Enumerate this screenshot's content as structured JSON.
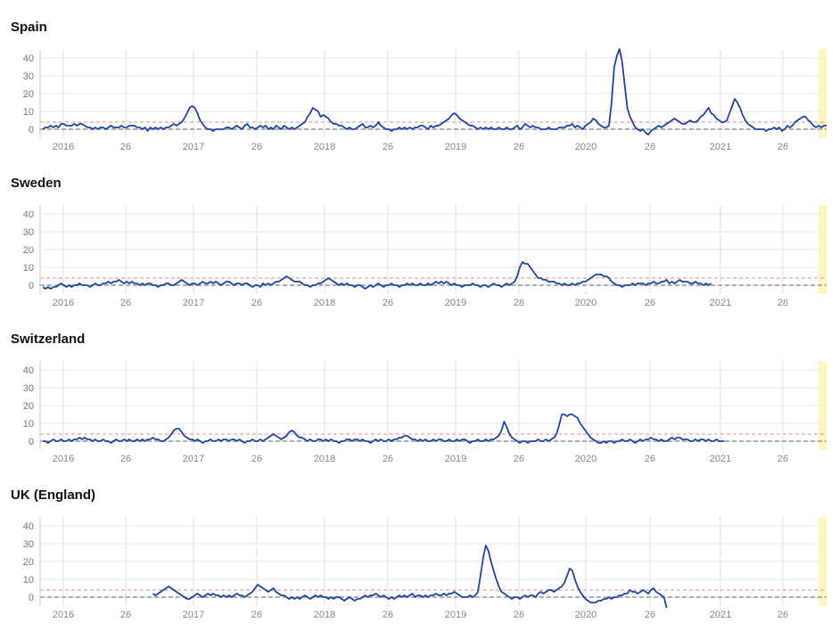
{
  "chart_data": [
    {
      "type": "line",
      "title": "Spain",
      "ylim": [
        -5,
        45
      ],
      "yticks": [
        0,
        10,
        20,
        30,
        40
      ],
      "x_tick_labels": [
        "2016",
        "26",
        "2017",
        "26",
        "2018",
        "26",
        "2019",
        "26",
        "2020",
        "26",
        "2021",
        "26"
      ],
      "baseline": 0,
      "threshold": 4,
      "series": [
        {
          "values": [
            0,
            1,
            1,
            2,
            1,
            2,
            1,
            3,
            3,
            2,
            2,
            2,
            3,
            2,
            3,
            3,
            2,
            1,
            1,
            0,
            1,
            0,
            1,
            1,
            0,
            1,
            2,
            1,
            1,
            1,
            2,
            1,
            1,
            2,
            2,
            2,
            1,
            1,
            0,
            1,
            -1,
            1,
            0,
            1,
            0,
            1,
            0,
            1,
            1,
            2,
            3,
            2,
            3,
            4,
            6,
            9,
            12,
            13,
            12,
            9,
            5,
            3,
            1,
            0,
            0,
            -1,
            0,
            0,
            0,
            0,
            1,
            1,
            0,
            1,
            2,
            1,
            0,
            2,
            3,
            1,
            1,
            0,
            1,
            2,
            1,
            2,
            0,
            1,
            0,
            2,
            1,
            0,
            2,
            1,
            0,
            1,
            0,
            1,
            2,
            3,
            4,
            7,
            9,
            12,
            11,
            10,
            7,
            8,
            7,
            6,
            4,
            3,
            3,
            2,
            2,
            1,
            0,
            1,
            0,
            0,
            1,
            2,
            3,
            1,
            1,
            2,
            1,
            2,
            4,
            2,
            1,
            0,
            0,
            -1,
            0,
            0,
            1,
            0,
            1,
            0,
            1,
            0,
            1,
            1,
            2,
            2,
            1,
            0,
            2,
            1,
            2,
            2,
            3,
            4,
            5,
            6,
            8,
            9,
            8,
            6,
            5,
            4,
            3,
            2,
            2,
            1,
            0,
            1,
            0,
            1,
            0,
            1,
            0,
            0,
            1,
            0,
            0,
            1,
            0,
            0,
            1,
            2,
            0,
            1,
            3,
            2,
            1,
            2,
            1,
            1,
            0,
            0,
            0,
            1,
            0,
            0,
            0,
            1,
            1,
            1,
            2,
            2,
            3,
            1,
            2,
            1,
            0,
            2,
            3,
            4,
            6,
            5,
            3,
            2,
            1,
            1,
            2,
            15,
            35,
            41,
            45,
            38,
            25,
            12,
            7,
            4,
            1,
            0,
            -1,
            0,
            -2,
            -3,
            -1,
            0,
            1,
            2,
            1,
            2,
            3,
            4,
            5,
            6,
            5,
            4,
            3,
            3,
            4,
            5,
            4,
            4,
            5,
            7,
            8,
            10,
            12,
            9,
            8,
            6,
            5,
            4,
            4,
            5,
            9,
            13,
            17,
            15,
            12,
            8,
            5,
            3,
            2,
            1,
            0,
            0,
            0,
            0,
            -1,
            0,
            0,
            1,
            0,
            1,
            -1,
            0,
            2,
            1,
            2,
            4,
            5,
            6,
            7,
            7,
            5,
            4,
            2,
            1,
            2,
            1,
            2,
            2
          ]
        }
      ]
    },
    {
      "type": "line",
      "title": "Sweden",
      "ylim": [
        -5,
        45
      ],
      "yticks": [
        0,
        10,
        20,
        30,
        40
      ],
      "x_tick_labels": [
        "2016",
        "26",
        "2017",
        "26",
        "2018",
        "26",
        "2019",
        "26",
        "2020",
        "26",
        "2021",
        "26"
      ],
      "baseline": 0,
      "threshold": 4,
      "series": [
        {
          "values": [
            -1,
            -2,
            -1,
            -2,
            -1,
            -1,
            0,
            1,
            0,
            -1,
            0,
            -1,
            0,
            0,
            1,
            0,
            0,
            0,
            -1,
            0,
            1,
            0,
            0,
            1,
            1,
            2,
            1,
            2,
            2,
            3,
            2,
            1,
            2,
            1,
            2,
            1,
            1,
            0,
            1,
            0,
            1,
            1,
            0,
            0,
            -1,
            0,
            0,
            1,
            1,
            0,
            0,
            1,
            2,
            3,
            2,
            1,
            0,
            1,
            1,
            0,
            1,
            2,
            1,
            1,
            2,
            1,
            2,
            1,
            0,
            1,
            2,
            2,
            1,
            0,
            1,
            1,
            0,
            1,
            1,
            0,
            -1,
            0,
            0,
            -1,
            1,
            0,
            1,
            0,
            1,
            2,
            2,
            3,
            4,
            5,
            4,
            3,
            2,
            2,
            2,
            1,
            0,
            0,
            -1,
            0,
            0,
            1,
            1,
            2,
            3,
            4,
            3,
            2,
            1,
            0,
            1,
            0,
            1,
            0,
            0,
            -1,
            0,
            0,
            -1,
            -2,
            -1,
            0,
            -1,
            0,
            1,
            0,
            -1,
            0,
            0,
            1,
            0,
            0,
            -1,
            0,
            0,
            1,
            0,
            1,
            0,
            0,
            1,
            0,
            0,
            1,
            0,
            1,
            2,
            1,
            2,
            1,
            2,
            1,
            0,
            1,
            0,
            0,
            -1,
            0,
            0,
            0,
            1,
            0,
            0,
            -1,
            0,
            0,
            -1,
            0,
            1,
            0,
            0,
            -1,
            0,
            1,
            0,
            1,
            2,
            5,
            10,
            13,
            12,
            12,
            10,
            8,
            6,
            4,
            4,
            3,
            3,
            2,
            2,
            2,
            1,
            1,
            0,
            1,
            0,
            0,
            1,
            0,
            1,
            1,
            2,
            2,
            3,
            4,
            5,
            6,
            6,
            6,
            5,
            5,
            4,
            2,
            1,
            0,
            0,
            -1,
            0,
            0,
            0,
            1,
            0,
            1,
            1,
            1,
            0,
            1,
            1,
            2,
            1,
            1,
            2,
            2,
            3,
            1,
            2,
            1,
            2,
            3,
            2,
            2,
            2,
            1,
            1,
            2,
            1,
            1,
            0,
            1,
            0,
            1
          ]
        }
      ]
    },
    {
      "type": "line",
      "title": "Switzerland",
      "ylim": [
        -5,
        45
      ],
      "yticks": [
        0,
        10,
        20,
        30,
        40
      ],
      "x_tick_labels": [
        "2016",
        "26",
        "2017",
        "26",
        "2018",
        "26",
        "2019",
        "26",
        "2020",
        "26",
        "2021",
        "26"
      ],
      "baseline": 0,
      "threshold": 4,
      "series": [
        {
          "values": [
            0,
            0,
            -1,
            0,
            1,
            0,
            0,
            1,
            0,
            0,
            1,
            0,
            1,
            1,
            2,
            1,
            2,
            1,
            1,
            0,
            1,
            0,
            0,
            1,
            0,
            0,
            -1,
            0,
            1,
            0,
            0,
            1,
            0,
            1,
            0,
            0,
            1,
            0,
            1,
            0,
            1,
            1,
            2,
            1,
            1,
            0,
            0,
            1,
            2,
            4,
            6,
            7,
            7,
            5,
            3,
            2,
            1,
            1,
            0,
            1,
            0,
            -1,
            0,
            0,
            1,
            0,
            0,
            1,
            0,
            1,
            1,
            0,
            1,
            1,
            0,
            1,
            0,
            -1,
            0,
            0,
            1,
            0,
            0,
            1,
            0,
            1,
            2,
            3,
            4,
            3,
            2,
            1,
            2,
            3,
            5,
            6,
            5,
            3,
            2,
            2,
            1,
            0,
            1,
            0,
            0,
            1,
            1,
            0,
            1,
            0,
            1,
            0,
            0,
            -1,
            0,
            0,
            1,
            1,
            0,
            1,
            1,
            0,
            1,
            0,
            0,
            -1,
            0,
            1,
            0,
            1,
            0,
            0,
            1,
            0,
            1,
            1,
            2,
            2,
            3,
            3,
            2,
            1,
            1,
            0,
            1,
            0,
            1,
            0,
            0,
            1,
            0,
            1,
            1,
            0,
            0,
            1,
            0,
            0,
            1,
            0,
            1,
            1,
            0,
            -1,
            0,
            0,
            1,
            0,
            0,
            1,
            0,
            1,
            1,
            2,
            3,
            6,
            11,
            8,
            4,
            2,
            1,
            0,
            -1,
            0,
            0,
            -1,
            0,
            0,
            0,
            1,
            0,
            0,
            1,
            0,
            1,
            2,
            4,
            9,
            15,
            15,
            14,
            15,
            15,
            14,
            13,
            10,
            8,
            6,
            4,
            2,
            1,
            0,
            -1,
            -1,
            0,
            -1,
            0,
            0,
            -1,
            0,
            0,
            1,
            0,
            0,
            1,
            0,
            -1,
            0,
            1,
            0,
            1,
            1,
            2,
            1,
            1,
            0,
            1,
            0,
            0,
            1,
            2,
            1,
            2,
            2,
            1,
            1,
            1,
            0,
            0,
            1,
            0,
            1,
            1,
            0,
            1,
            0,
            0,
            1,
            0,
            0,
            0
          ]
        }
      ]
    },
    {
      "type": "line",
      "title": "UK (England)",
      "ylim": [
        -5,
        45
      ],
      "yticks": [
        0,
        10,
        20,
        30,
        40
      ],
      "x_tick_labels": [
        "2016",
        "26",
        "2017",
        "26",
        "2018",
        "26",
        "2019",
        "26",
        "2020",
        "26",
        "2021",
        "26"
      ],
      "baseline": 0,
      "threshold": 4,
      "series": [
        {
          "start_index": 42,
          "values": [
            2,
            1,
            2,
            3,
            4,
            5,
            6,
            5,
            4,
            3,
            2,
            1,
            0,
            -1,
            -1,
            0,
            1,
            2,
            1,
            0,
            1,
            2,
            1,
            2,
            1,
            1,
            0,
            1,
            0,
            1,
            0,
            1,
            2,
            1,
            1,
            0,
            1,
            2,
            3,
            5,
            7,
            6,
            5,
            4,
            3,
            4,
            5,
            3,
            2,
            1,
            1,
            0,
            -1,
            0,
            -1,
            0,
            -1,
            0,
            1,
            0,
            -1,
            0,
            1,
            0,
            1,
            0,
            0,
            -1,
            0,
            -1,
            0,
            0,
            -1,
            -2,
            -1,
            0,
            -1,
            -2,
            -1,
            -1,
            0,
            1,
            0,
            1,
            1,
            2,
            1,
            0,
            1,
            0,
            -1,
            0,
            -1,
            0,
            1,
            0,
            1,
            0,
            1,
            2,
            0,
            1,
            1,
            0,
            1,
            0,
            1,
            1,
            2,
            1,
            1,
            2,
            1,
            2,
            2,
            3,
            2,
            1,
            0,
            0,
            0,
            1,
            0,
            1,
            3,
            12,
            22,
            29,
            26,
            20,
            15,
            10,
            6,
            3,
            2,
            1,
            0,
            -1,
            0,
            0,
            -1,
            0,
            1,
            0,
            1,
            1,
            0,
            2,
            3,
            2,
            3,
            4,
            4,
            3,
            4,
            5,
            6,
            8,
            12,
            16,
            15,
            10,
            6,
            3,
            1,
            -1,
            -2,
            -3,
            -3,
            -3,
            -2,
            -2,
            -1,
            -1,
            0,
            -1,
            0,
            0,
            1,
            1,
            2,
            2,
            4,
            3,
            3,
            2,
            3,
            4,
            3,
            2,
            4,
            5,
            3,
            2,
            1,
            0,
            -6
          ]
        }
      ]
    }
  ]
}
